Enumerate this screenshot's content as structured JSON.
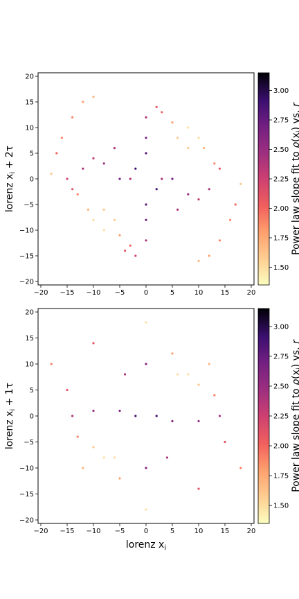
{
  "chart_data": [
    {
      "type": "scatter",
      "xlabel": "",
      "ylabel": "lorenz x_i + 2τ",
      "xlim": [
        -20,
        20
      ],
      "ylim": [
        -20,
        20
      ],
      "xticks": [
        "−20",
        "−15",
        "−10",
        "−5",
        "0",
        "5",
        "10",
        "15",
        "20"
      ],
      "yticks": [
        "−20",
        "−15",
        "−10",
        "−5",
        "0",
        "5",
        "10",
        "15",
        "20"
      ],
      "colorbar": {
        "label": "Power law slope fit to ρ(x_i) vs. r",
        "range": [
          1.35,
          3.15
        ],
        "ticks": [
          "1.50",
          "1.75",
          "2.00",
          "2.25",
          "2.50",
          "2.75",
          "3.00"
        ],
        "colormap": "magma_r"
      },
      "lag_tau": 2,
      "points": [
        [
          -10,
          -8,
          1.5
        ],
        [
          -8,
          -10,
          1.5
        ],
        [
          -6,
          -8,
          1.6
        ],
        [
          -8,
          -6,
          1.6
        ],
        [
          -11,
          -6,
          1.7
        ],
        [
          -5,
          -11,
          1.8
        ],
        [
          -13,
          -3,
          1.9
        ],
        [
          -3,
          -13,
          2.0
        ],
        [
          -4,
          -14,
          2.1
        ],
        [
          -14,
          -2,
          2.1
        ],
        [
          -15,
          0,
          2.2
        ],
        [
          -2,
          -15,
          2.2
        ],
        [
          10,
          8,
          1.5
        ],
        [
          8,
          10,
          1.5
        ],
        [
          6,
          8,
          1.6
        ],
        [
          8,
          6,
          1.6
        ],
        [
          11,
          6,
          1.7
        ],
        [
          5,
          11,
          1.8
        ],
        [
          13,
          3,
          1.9
        ],
        [
          3,
          13,
          2.0
        ],
        [
          14,
          2,
          2.1
        ],
        [
          2,
          14,
          2.1
        ],
        [
          -10,
          16,
          1.7
        ],
        [
          -14,
          12,
          1.9
        ],
        [
          -16,
          8,
          1.9
        ],
        [
          -17,
          5,
          2.0
        ],
        [
          -12,
          15,
          1.8
        ],
        [
          10,
          -16,
          1.7
        ],
        [
          14,
          -12,
          1.9
        ],
        [
          16,
          -8,
          1.9
        ],
        [
          17,
          -5,
          2.0
        ],
        [
          12,
          -15,
          1.8
        ],
        [
          0,
          -5,
          2.8
        ],
        [
          0,
          -8,
          2.7
        ],
        [
          0,
          5,
          2.8
        ],
        [
          0,
          8,
          2.7
        ],
        [
          5,
          0,
          2.7
        ],
        [
          -5,
          0,
          2.7
        ],
        [
          2,
          -2,
          2.9
        ],
        [
          -2,
          2,
          2.9
        ],
        [
          3,
          0,
          2.4
        ],
        [
          -3,
          0,
          2.4
        ],
        [
          0,
          -12,
          2.4
        ],
        [
          0,
          12,
          2.4
        ],
        [
          8,
          -3,
          2.5
        ],
        [
          -8,
          3,
          2.5
        ],
        [
          6,
          -6,
          2.4
        ],
        [
          -6,
          6,
          2.4
        ],
        [
          10,
          -4,
          2.3
        ],
        [
          -10,
          4,
          2.3
        ],
        [
          12,
          -2,
          2.4
        ],
        [
          -12,
          2,
          2.4
        ],
        [
          18,
          -1,
          1.6
        ],
        [
          -18,
          1,
          1.6
        ]
      ]
    },
    {
      "type": "scatter",
      "xlabel": "lorenz x_i",
      "ylabel": "lorenz x_i + 1τ",
      "xlim": [
        -20,
        20
      ],
      "ylim": [
        -20,
        20
      ],
      "xticks": [
        "−20",
        "−15",
        "−10",
        "−5",
        "0",
        "5",
        "10",
        "15",
        "20"
      ],
      "yticks": [
        "−20",
        "−15",
        "−10",
        "−5",
        "0",
        "5",
        "10",
        "15",
        "20"
      ],
      "colorbar": {
        "label": "Power law slope fit to ρ(x_i) vs. r",
        "range": [
          1.35,
          3.15
        ],
        "ticks": [
          "1.50",
          "1.75",
          "2.00",
          "2.25",
          "2.50",
          "2.75",
          "3.00"
        ],
        "colormap": "magma_r"
      },
      "lag_tau": 1,
      "points": [
        [
          -8,
          -8,
          1.5
        ],
        [
          -6,
          -8,
          1.5
        ],
        [
          -10,
          -6,
          1.6
        ],
        [
          -12,
          -10,
          1.7
        ],
        [
          -5,
          -12,
          1.8
        ],
        [
          -13,
          -4,
          1.9
        ],
        [
          8,
          8,
          1.5
        ],
        [
          6,
          8,
          1.5
        ],
        [
          10,
          6,
          1.6
        ],
        [
          12,
          10,
          1.7
        ],
        [
          5,
          12,
          1.8
        ],
        [
          13,
          4,
          1.9
        ],
        [
          -18,
          10,
          1.9
        ],
        [
          -15,
          5,
          2.1
        ],
        [
          -10,
          14,
          2.1
        ],
        [
          18,
          -10,
          1.9
        ],
        [
          15,
          -5,
          2.1
        ],
        [
          10,
          -14,
          2.1
        ],
        [
          0,
          18,
          1.5
        ],
        [
          0,
          -18,
          1.5
        ],
        [
          0,
          10,
          2.6
        ],
        [
          0,
          -10,
          2.6
        ],
        [
          2,
          0,
          2.9
        ],
        [
          -2,
          0,
          2.9
        ],
        [
          5,
          -1,
          2.6
        ],
        [
          -5,
          1,
          2.6
        ],
        [
          10,
          -1,
          2.5
        ],
        [
          -10,
          1,
          2.5
        ],
        [
          14,
          0,
          2.4
        ],
        [
          -14,
          0,
          2.4
        ],
        [
          4,
          -8,
          2.4
        ],
        [
          -4,
          8,
          2.4
        ]
      ]
    }
  ]
}
